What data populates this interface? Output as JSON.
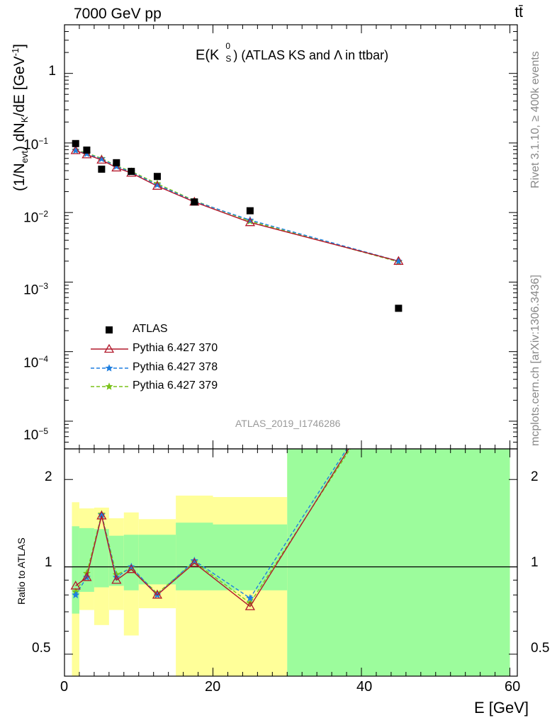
{
  "header": {
    "energy": "7000 GeV pp",
    "process": "tt̄"
  },
  "chart_data": [
    {
      "type": "scatter",
      "panel": "main",
      "title": "E(K⁰ₛ) (ATLAS KS and Λ in ttbar)",
      "title_main": "E(K",
      "title_sup": "0",
      "title_sub": "S",
      "title_rest": ") (ATLAS KS and Λ in ttbar)",
      "ylabel": "(1/N_evt) dN_K/dE [GeV^-1]",
      "ylabel_parts": [
        "(1/N",
        "evt",
        ") dN",
        "K",
        "/dE [GeV",
        "-1",
        "]"
      ],
      "yscale": "log",
      "xlim": [
        0,
        61
      ],
      "ylim": [
        4e-06,
        5
      ],
      "yticklabels": [
        {
          "base": "10",
          "exp": "−5",
          "value": 1e-05
        },
        {
          "base": "10",
          "exp": "−4",
          "value": 0.0001
        },
        {
          "base": "10",
          "exp": "−3",
          "value": 0.001
        },
        {
          "base": "10",
          "exp": "−2",
          "value": 0.01
        },
        {
          "base": "10",
          "exp": "−1",
          "value": 0.1
        },
        {
          "base": "1",
          "exp": "",
          "value": 1
        }
      ],
      "legend_position": "lower-left",
      "analysis_id": "ATLAS_2019_I1746286",
      "x": [
        1.5,
        3,
        5,
        7,
        9,
        12.5,
        17.5,
        25,
        45
      ],
      "series": [
        {
          "name": "ATLAS",
          "values": [
            0.098,
            0.079,
            0.042,
            0.052,
            0.039,
            0.033,
            0.0142,
            0.0106,
            0.00042
          ]
        },
        {
          "name": "Pythia 6.427 370",
          "values": [
            0.078,
            0.068,
            0.057,
            0.044,
            0.037,
            0.024,
            0.0142,
            0.0072,
            0.002
          ]
        },
        {
          "name": "Pythia 6.427 378",
          "values": [
            0.078,
            0.07,
            0.059,
            0.046,
            0.038,
            0.025,
            0.0145,
            0.0078,
            0.002
          ]
        },
        {
          "name": "Pythia 6.427 379",
          "values": [
            0.079,
            0.072,
            0.06,
            0.047,
            0.039,
            0.026,
            0.0148,
            0.0075,
            0.00195
          ]
        }
      ],
      "colors": {
        "ATLAS": "#000000",
        "Pythia 6.427 370": "#b2182b",
        "Pythia 6.427 378": "#1f7fe0",
        "Pythia 6.427 379": "#7ac21a"
      }
    },
    {
      "type": "line",
      "panel": "ratio",
      "ylabel": "Ratio to ATLAS",
      "xlabel": "E [GeV]",
      "yscale": "log",
      "xlim": [
        0,
        61
      ],
      "ylim": [
        0.42,
        2.55
      ],
      "yticks": [
        0.5,
        1,
        2
      ],
      "yticklabels": [
        "0.5",
        "1",
        "2"
      ],
      "xticks": [
        0,
        20,
        40,
        60
      ],
      "xticklabels": [
        "0",
        "20",
        "40",
        "60"
      ],
      "x": [
        1.5,
        3,
        5,
        7,
        9,
        12.5,
        17.5,
        25,
        45
      ],
      "bins": [
        {
          "lo": 1,
          "hi": 2,
          "stat": [
            0.69,
            1.38
          ],
          "total": [
            0.38,
            1.67
          ]
        },
        {
          "lo": 2,
          "hi": 4,
          "stat": [
            0.82,
            1.36
          ],
          "total": [
            0.71,
            1.59
          ]
        },
        {
          "lo": 4,
          "hi": 6,
          "stat": [
            0.85,
            1.35
          ],
          "total": [
            0.63,
            1.6
          ]
        },
        {
          "lo": 6,
          "hi": 8,
          "stat": [
            0.86,
            1.28
          ],
          "total": [
            0.71,
            1.47
          ]
        },
        {
          "lo": 8,
          "hi": 10,
          "stat": [
            0.83,
            1.29
          ],
          "total": [
            0.58,
            1.54
          ]
        },
        {
          "lo": 10,
          "hi": 15,
          "stat": [
            0.87,
            1.29
          ],
          "total": [
            0.72,
            1.46
          ]
        },
        {
          "lo": 15,
          "hi": 20,
          "stat": [
            0.83,
            1.42
          ],
          "total": [
            0.38,
            1.76
          ]
        },
        {
          "lo": 20,
          "hi": 30,
          "stat": [
            0.83,
            1.4
          ],
          "total": [
            0.38,
            1.74
          ]
        },
        {
          "lo": 30,
          "hi": 60,
          "stat": [
            0.38,
            3
          ],
          "total": [
            0.38,
            3
          ]
        }
      ],
      "series": [
        {
          "name": "Pythia 6.427 370",
          "values": [
            0.86,
            0.92,
            1.5,
            0.9,
            0.98,
            0.8,
            1.03,
            0.73,
            4.8
          ]
        },
        {
          "name": "Pythia 6.427 378",
          "values": [
            0.8,
            0.92,
            1.51,
            0.92,
            1.0,
            0.8,
            1.05,
            0.78,
            4.8
          ]
        },
        {
          "name": "Pythia 6.427 379",
          "values": [
            0.82,
            0.95,
            1.52,
            0.94,
            0.99,
            0.81,
            1.04,
            0.75,
            4.6
          ]
        }
      ],
      "colors": {
        "stat_band": "#9cfc9c",
        "total_band": "#ffff99",
        "reference_line": "#000000"
      }
    }
  ],
  "side_text": {
    "rivet": "Rivet 3.1.10, ≥ 400k events",
    "mcplots": "mcplots.cern.ch [arXiv:1306.3436]"
  }
}
